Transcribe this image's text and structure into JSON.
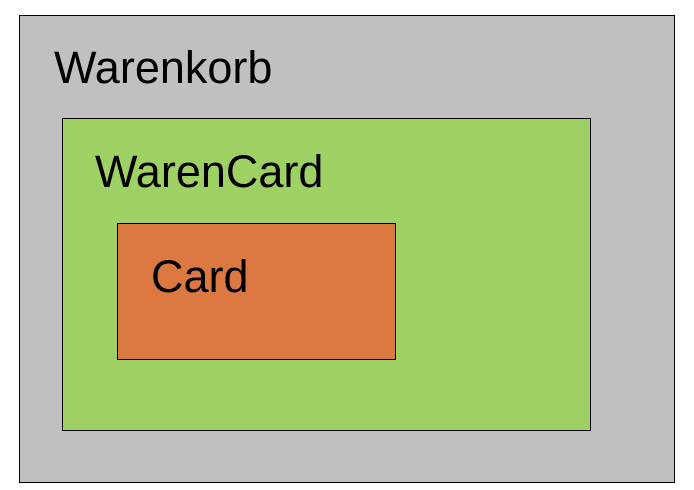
{
  "outer": {
    "label": "Warenkorb",
    "color": "#c0c0c0"
  },
  "middle": {
    "label": "WarenCard",
    "color": "#9fd064"
  },
  "inner": {
    "label": "Card",
    "color": "#dc7942"
  }
}
